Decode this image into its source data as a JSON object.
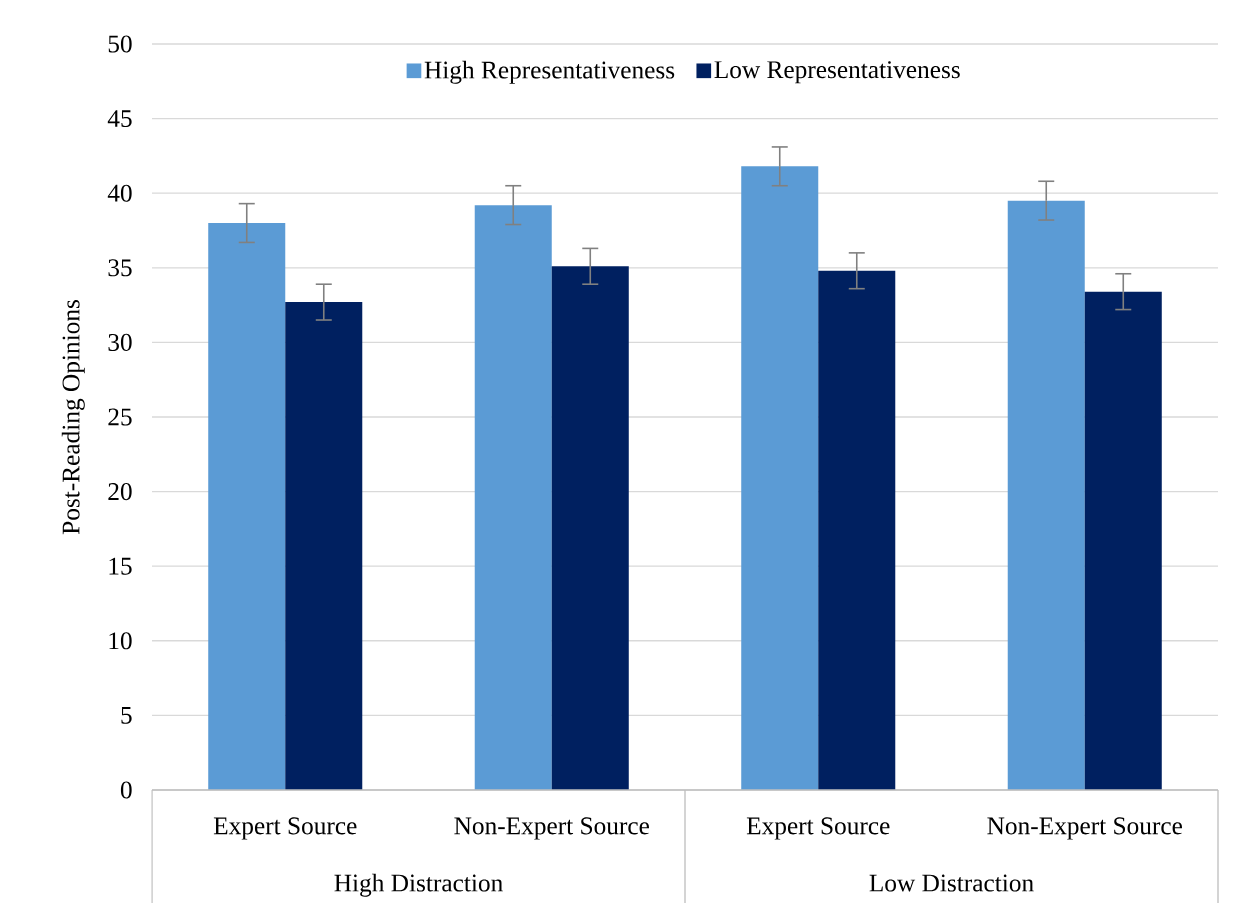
{
  "chart_data": {
    "type": "bar",
    "categories": [
      "Expert Source",
      "Non-Expert Source",
      "Expert Source",
      "Non-Expert Source"
    ],
    "series": [
      {
        "name": "High Representativeness",
        "color": "#5b9bd5",
        "values": [
          38.0,
          39.2,
          41.8,
          39.5
        ],
        "errors": [
          1.3,
          1.3,
          1.3,
          1.3
        ]
      },
      {
        "name": "Low Representativeness",
        "color": "#002060",
        "values": [
          32.7,
          35.1,
          34.8,
          33.4
        ],
        "errors": [
          1.2,
          1.2,
          1.2,
          1.2
        ]
      }
    ],
    "ylabel": "Post-Reading Opinions",
    "annotations": [
      "High Distraction",
      "Low Distraction"
    ],
    "ylim": [
      0,
      50
    ],
    "yticks": [
      0,
      5,
      10,
      15,
      20,
      25,
      30,
      35,
      40,
      45,
      50
    ],
    "grid": "y",
    "legend": "top"
  }
}
